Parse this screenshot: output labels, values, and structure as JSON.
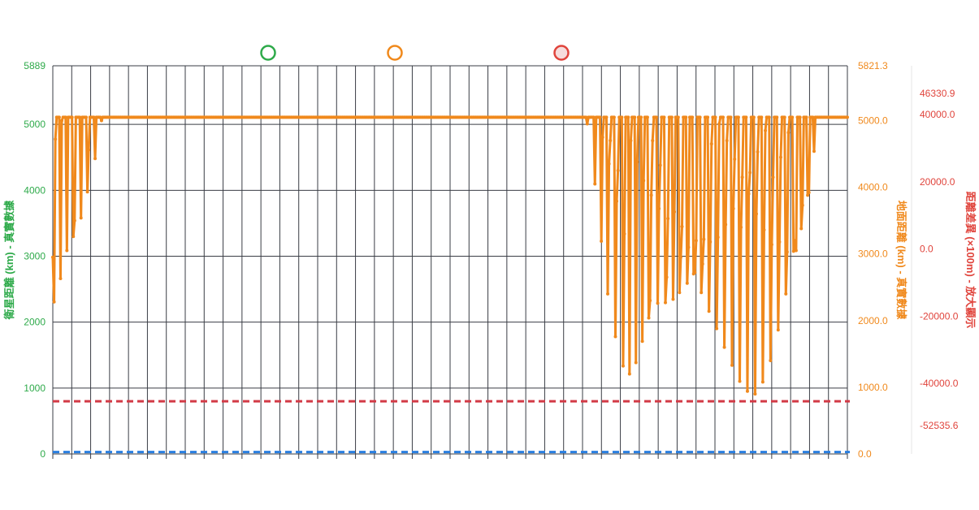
{
  "chart_data": {
    "type": "line",
    "legend": {
      "placement": "top",
      "items": [
        {
          "name": "",
          "color": "#2eaa4a",
          "style": "hollow-circle"
        },
        {
          "name": "",
          "color": "#f0891c",
          "style": "hollow-circle"
        },
        {
          "name": "",
          "color": "#e0443c",
          "style": "filled-circle"
        }
      ]
    },
    "axes": {
      "y_left": {
        "label": "衛星距離 (km) - 真實數據",
        "min": 0,
        "max": 5889,
        "ticks": [
          "0",
          "1000",
          "2000",
          "3000",
          "4000",
          "5000",
          "5889"
        ],
        "color": "#2eaa4a"
      },
      "y_right1": {
        "label": "地面距離 (km) - 真實數據",
        "min": 0,
        "max": 5821.3,
        "ticks": [
          "0.0",
          "1000.0",
          "2000.0",
          "3000.0",
          "4000.0",
          "5000.0",
          "5821.3"
        ],
        "color": "#f0891c"
      },
      "y_right2": {
        "label": "距離差異 (×100m) - 放大顯示",
        "min": -52535.6,
        "max": 46330.9,
        "ticks": [
          "-52535.6",
          "-40000.0",
          "-20000.0",
          "0.0",
          "20000.0",
          "40000.0",
          "46330.9"
        ],
        "color": "#e0443c"
      },
      "x": {
        "grid_lines": 43,
        "grid": true
      }
    },
    "series": [
      {
        "axis": "y_left",
        "color": "#2a7fe0",
        "style": "dashed",
        "values": [
          30
        ]
      },
      {
        "axis": "y_right1",
        "color": "#f0891c",
        "style": "solid-with-points",
        "values": [
          2950,
          2280,
          4720,
          5050,
          5050,
          5050,
          2630,
          5000,
          5050,
          5050,
          5050,
          3050,
          5050,
          5050,
          5050,
          5050,
          3260,
          3500,
          5050,
          5050,
          5050,
          5050,
          3540,
          5050,
          5050,
          5050,
          5050,
          3930,
          4560,
          5050,
          5050,
          5050,
          5050,
          4430,
          5050,
          5050,
          5050,
          5050,
          5000,
          5050,
          5050,
          5050,
          5050,
          5050,
          5050,
          5050,
          5050,
          5050,
          5050,
          5050,
          5050,
          5050,
          5050,
          5050,
          5050,
          5050,
          5050,
          5050,
          5050,
          5050,
          5050,
          5050,
          5050,
          5050,
          5050,
          5050,
          5050,
          5050,
          5050,
          5050,
          5050,
          5050,
          5050,
          5050,
          5050,
          5050,
          5050,
          5050,
          5050,
          5050,
          5050,
          5050,
          5050,
          5050,
          5050,
          5050,
          5050,
          5050,
          5050,
          5050,
          5050,
          5050,
          5050,
          5050,
          5050,
          5050,
          5050,
          5050,
          5050,
          5050,
          5050,
          5050,
          5050,
          5050,
          5050,
          5050,
          5050,
          5050,
          5050,
          5050,
          5050,
          5050,
          5050,
          5050,
          5050,
          5050,
          5050,
          5050,
          5050,
          5050,
          5050,
          5050,
          5050,
          5050,
          5050,
          5050,
          5050,
          5050,
          5050,
          5050,
          5050,
          5050,
          5050,
          5050,
          5050,
          5050,
          5050,
          5050,
          5050,
          5050,
          5050,
          5050,
          5050,
          5050,
          5050,
          5050,
          5050,
          5050,
          5050,
          5050,
          5050,
          5050,
          5050,
          5050,
          5050,
          5050,
          5050,
          5050,
          5050,
          5050,
          5050,
          5050,
          5050,
          5050,
          5050,
          5050,
          5050,
          5050,
          5050,
          5050,
          5050,
          5050,
          5050,
          5050,
          5050,
          5050,
          5050,
          5050,
          5050,
          5050,
          5050,
          5050,
          5050,
          5050,
          5050,
          5050,
          5050,
          5050,
          5050,
          5050,
          5050,
          5050,
          5050,
          5050,
          5050,
          5050,
          5050,
          5050,
          5050,
          5050,
          5050,
          5050,
          5050,
          5050,
          5050,
          5050,
          5050,
          5050,
          5050,
          5050,
          5050,
          5050,
          5050,
          5050,
          5050,
          5050,
          5050,
          5050,
          5050,
          5050,
          5050,
          5050,
          5050,
          5050,
          5050,
          5050,
          5050,
          5050,
          5050,
          5050,
          5050,
          5050,
          5050,
          5050,
          5050,
          5050,
          5050,
          5050,
          5050,
          5050,
          5050,
          5050,
          5050,
          5050,
          5050,
          5050,
          5050,
          5050,
          5050,
          5050,
          5050,
          5050,
          5050,
          5050,
          5050,
          5050,
          5050,
          5050,
          5050,
          5050,
          5050,
          5050,
          5050,
          5050,
          5050,
          5050,
          5050,
          5050,
          5050,
          5050,
          5050,
          5050,
          5050,
          5050,
          5050,
          5050,
          5050,
          5050,
          5050,
          5050,
          5050,
          5050,
          5050,
          5050,
          5050,
          5050,
          5050,
          5050,
          5050,
          5050,
          5050,
          5050,
          5050,
          5050,
          5050,
          5050,
          5050,
          5050,
          5050,
          5050,
          5050,
          5050,
          5050,
          5050,
          5050,
          5050,
          5050,
          5050,
          5050,
          5050,
          5050,
          5050,
          5050,
          5050,
          5050,
          5050,
          5050,
          5050,
          5050,
          5050,
          5050,
          5050,
          5050,
          5050,
          5050,
          5050,
          5050,
          5050,
          5050,
          5050,
          5050,
          5050,
          5050,
          5050,
          5050,
          5050,
          5050,
          5050,
          5050,
          5050,
          5050,
          5050,
          5050,
          5050,
          5050,
          5050,
          5050,
          5050,
          5050,
          5050,
          5050,
          5050,
          5050,
          5050,
          5050,
          5050,
          5050,
          5050,
          5050,
          5050,
          5050,
          5050,
          5050,
          5050,
          5050,
          5050,
          5050,
          5050,
          5050,
          5050,
          5050,
          5050,
          5050,
          5050,
          5050,
          5050,
          5050,
          5050,
          5050,
          5050,
          5050,
          5050,
          5050,
          5050,
          5050,
          5050,
          5050,
          5050,
          5050,
          5050,
          5050,
          5050,
          5050,
          5050,
          5050,
          5050,
          5050,
          5050,
          5050,
          5050,
          5050,
          5050,
          5050,
          5050,
          5050,
          5050,
          5050,
          5050,
          5050,
          5050,
          5050,
          5050,
          5050,
          5050,
          5050,
          5050,
          5050,
          4950,
          5050,
          5050,
          5050,
          5050,
          5050,
          4050,
          5050,
          5050,
          5050,
          5050,
          3190,
          4750,
          5050,
          5050,
          5050,
          2400,
          4350,
          4700,
          5050,
          5050,
          5050,
          1760,
          3790,
          4250,
          5050,
          5050,
          5050,
          1320,
          3300,
          5050,
          5050,
          5050,
          1200,
          4700,
          5050,
          5050,
          5050,
          1370,
          4380,
          5050,
          5050,
          5050,
          1690,
          4100,
          5050,
          5050,
          5050,
          2040,
          2300,
          3880,
          4700,
          5050,
          5050,
          5050,
          2260,
          3680,
          4330,
          5050,
          5050,
          5050,
          2270,
          2650,
          3530,
          5050,
          5050,
          5050,
          2320,
          3630,
          5050,
          5050,
          5050,
          2420,
          2950,
          3410,
          5050,
          5050,
          5050,
          2560,
          3100,
          5050,
          5050,
          5050,
          2700,
          2720,
          3200,
          5050,
          5050,
          5050,
          2420,
          2850,
          3220,
          5050,
          5050,
          5050,
          2140,
          3180,
          4650,
          5050,
          5050,
          5050,
          1880,
          3250,
          4950,
          5050,
          5050,
          5050,
          1600,
          3440,
          4700,
          5050,
          5050,
          5050,
          1330,
          3680,
          4420,
          5050,
          5050,
          5050,
          1090,
          3400,
          4150,
          5050,
          5050,
          5050,
          940,
          3900,
          4220,
          5050,
          5050,
          5050,
          900,
          3600,
          4530,
          5050,
          5050,
          5050,
          1080,
          3360,
          4850,
          5050,
          5050,
          5050,
          1400,
          3140,
          4150,
          5050,
          5050,
          5050,
          1860,
          3180,
          4450,
          5050,
          5050,
          5050,
          2400,
          3030,
          4820,
          5050,
          5050,
          5050,
          3040,
          3200,
          3050,
          5050,
          5050,
          5050,
          3380,
          3730,
          5050,
          5050,
          5050,
          3880,
          3920,
          5050,
          5050,
          5050,
          4540,
          5050,
          5050,
          5050,
          5050,
          5050,
          5050,
          5050,
          5050,
          5050,
          5050,
          5050,
          5050,
          5050,
          5050,
          5050,
          5050,
          5050,
          5050,
          5050,
          5050,
          5050,
          5050,
          5050,
          5050,
          5050,
          5050
        ]
      },
      {
        "axis": "y_left",
        "color": "#d23a46",
        "style": "dashed",
        "values": [
          800
        ]
      }
    ]
  }
}
